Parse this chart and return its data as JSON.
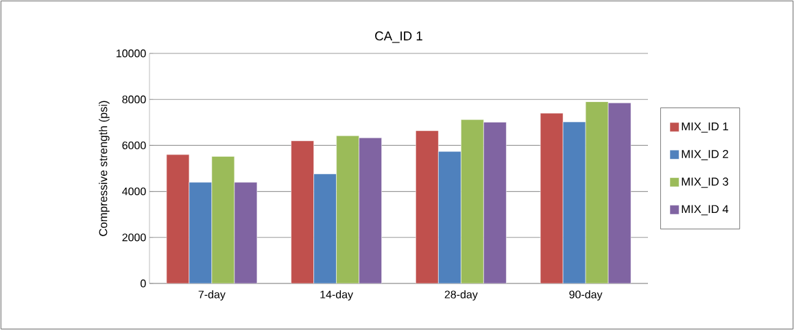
{
  "chart_data": {
    "type": "bar",
    "title": "CA_ID 1",
    "ylabel": "Compressive strength (psi)",
    "categories": [
      "7-day",
      "14-day",
      "28-day",
      "90-day"
    ],
    "series": [
      {
        "name": "MIX_ID 1",
        "color": "#c0504d",
        "values": [
          5600,
          6200,
          6640,
          7400
        ]
      },
      {
        "name": "MIX_ID 2",
        "color": "#4f81bd",
        "values": [
          4400,
          4760,
          5740,
          7020
        ]
      },
      {
        "name": "MIX_ID 3",
        "color": "#9bbb59",
        "values": [
          5520,
          6420,
          7120,
          7900
        ]
      },
      {
        "name": "MIX_ID 4",
        "color": "#8064a2",
        "values": [
          4400,
          6330,
          7010,
          7850
        ]
      }
    ],
    "ylim": [
      0,
      10000
    ],
    "yticks": [
      0,
      2000,
      4000,
      6000,
      8000,
      10000
    ],
    "grid": "y",
    "legend": "right"
  }
}
